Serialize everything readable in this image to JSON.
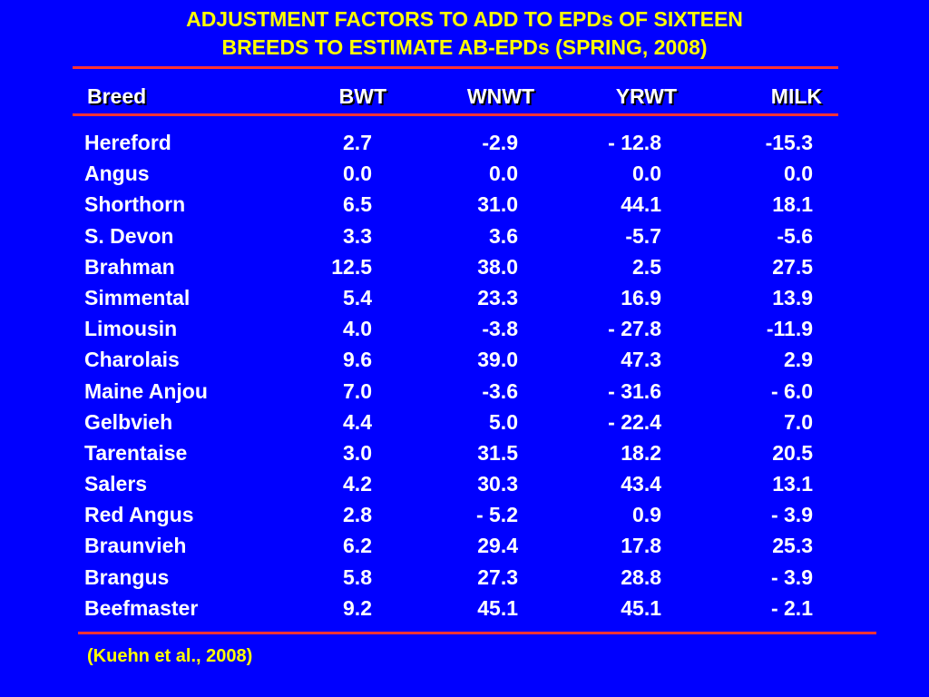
{
  "title": {
    "line1": "ADJUSTMENT FACTORS TO ADD TO EPDs OF SIXTEEN",
    "line2": "BREEDS TO ESTIMATE AB-EPDs (SPRING, 2008)"
  },
  "colors": {
    "background": "#0000ff",
    "title_text": "#ffff00",
    "body_text": "#ffffff",
    "rule": "#ff3333"
  },
  "table": {
    "columns": [
      "Breed",
      "BWT",
      "WNWT",
      "YRWT",
      "MILK"
    ],
    "rows": [
      {
        "breed": "Hereford",
        "bwt": "2.7",
        "wnwt": "-2.9",
        "yrwt": "- 12.8",
        "milk": "-15.3"
      },
      {
        "breed": "Angus",
        "bwt": "0.0",
        "wnwt": "0.0",
        "yrwt": "0.0",
        "milk": "0.0"
      },
      {
        "breed": "Shorthorn",
        "bwt": "6.5",
        "wnwt": "31.0",
        "yrwt": "44.1",
        "milk": "18.1"
      },
      {
        "breed": "S. Devon",
        "bwt": "3.3",
        "wnwt": "3.6",
        "yrwt": "-5.7",
        "milk": "-5.6"
      },
      {
        "breed": "Brahman",
        "bwt": "12.5",
        "wnwt": "38.0",
        "yrwt": "2.5",
        "milk": "27.5"
      },
      {
        "breed": "Simmental",
        "bwt": "5.4",
        "wnwt": "23.3",
        "yrwt": "16.9",
        "milk": "13.9"
      },
      {
        "breed": "Limousin",
        "bwt": "4.0",
        "wnwt": "-3.8",
        "yrwt": "- 27.8",
        "milk": "-11.9"
      },
      {
        "breed": "Charolais",
        "bwt": "9.6",
        "wnwt": "39.0",
        "yrwt": "47.3",
        "milk": "2.9"
      },
      {
        "breed": "Maine Anjou",
        "bwt": "7.0",
        "wnwt": "-3.6",
        "yrwt": "- 31.6",
        "milk": "- 6.0"
      },
      {
        "breed": "Gelbvieh",
        "bwt": "4.4",
        "wnwt": "5.0",
        "yrwt": "- 22.4",
        "milk": "7.0"
      },
      {
        "breed": "Tarentaise",
        "bwt": "3.0",
        "wnwt": "31.5",
        "yrwt": "18.2",
        "milk": "20.5"
      },
      {
        "breed": "Salers",
        "bwt": "4.2",
        "wnwt": "30.3",
        "yrwt": "43.4",
        "milk": "13.1"
      },
      {
        "breed": "Red Angus",
        "bwt": "2.8",
        "wnwt": "- 5.2",
        "yrwt": "0.9",
        "milk": "- 3.9"
      },
      {
        "breed": "Braunvieh",
        "bwt": "6.2",
        "wnwt": "29.4",
        "yrwt": "17.8",
        "milk": "25.3"
      },
      {
        "breed": "Brangus",
        "bwt": "5.8",
        "wnwt": "27.3",
        "yrwt": "28.8",
        "milk": "- 3.9"
      },
      {
        "breed": "Beefmaster",
        "bwt": "9.2",
        "wnwt": "45.1",
        "yrwt": "45.1",
        "milk": "- 2.1"
      }
    ]
  },
  "citation": "(Kuehn et al., 2008)"
}
